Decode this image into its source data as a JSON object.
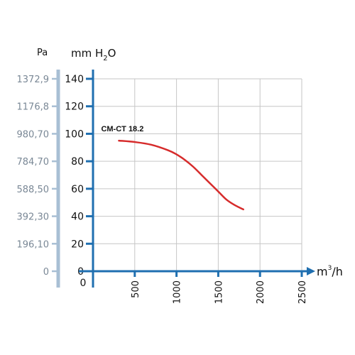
{
  "chart_data": {
    "type": "line",
    "x_unit": {
      "base": "m",
      "exp": "3",
      "suffix": "/h"
    },
    "y_unit": {
      "base": "mm H",
      "sub": "2",
      "suffix": "O"
    },
    "y_unit_secondary": "Pa",
    "x_ticks": [
      "500",
      "1000",
      "1500",
      "2000",
      "2500"
    ],
    "x_tick_values": [
      500,
      1000,
      1500,
      2000,
      2500
    ],
    "origin_label": "0",
    "y_ticks": [
      "140",
      "120",
      "100",
      "80",
      "60",
      "40",
      "20",
      "0"
    ],
    "y_tick_values": [
      140,
      120,
      100,
      80,
      60,
      40,
      20,
      0
    ],
    "pa_ticks": [
      "1372,9",
      "1176,8",
      "980,70",
      "784,70",
      "588,50",
      "392,30",
      "196,10",
      "0"
    ],
    "pa_tick_values": [
      140,
      120,
      100,
      80,
      60,
      40,
      20,
      0
    ],
    "xlim": [
      0,
      2500
    ],
    "ylim": [
      0,
      140
    ],
    "grid": true,
    "series": [
      {
        "name": "CM-CT 18.2",
        "color": "#d62b2b",
        "x": [
          310,
          500,
          700,
          900,
          1000,
          1100,
          1200,
          1300,
          1400,
          1500,
          1600,
          1700,
          1800
        ],
        "y": [
          95,
          94,
          92,
          88,
          85,
          81,
          76,
          70,
          64,
          58,
          52,
          48,
          45
        ]
      }
    ]
  }
}
